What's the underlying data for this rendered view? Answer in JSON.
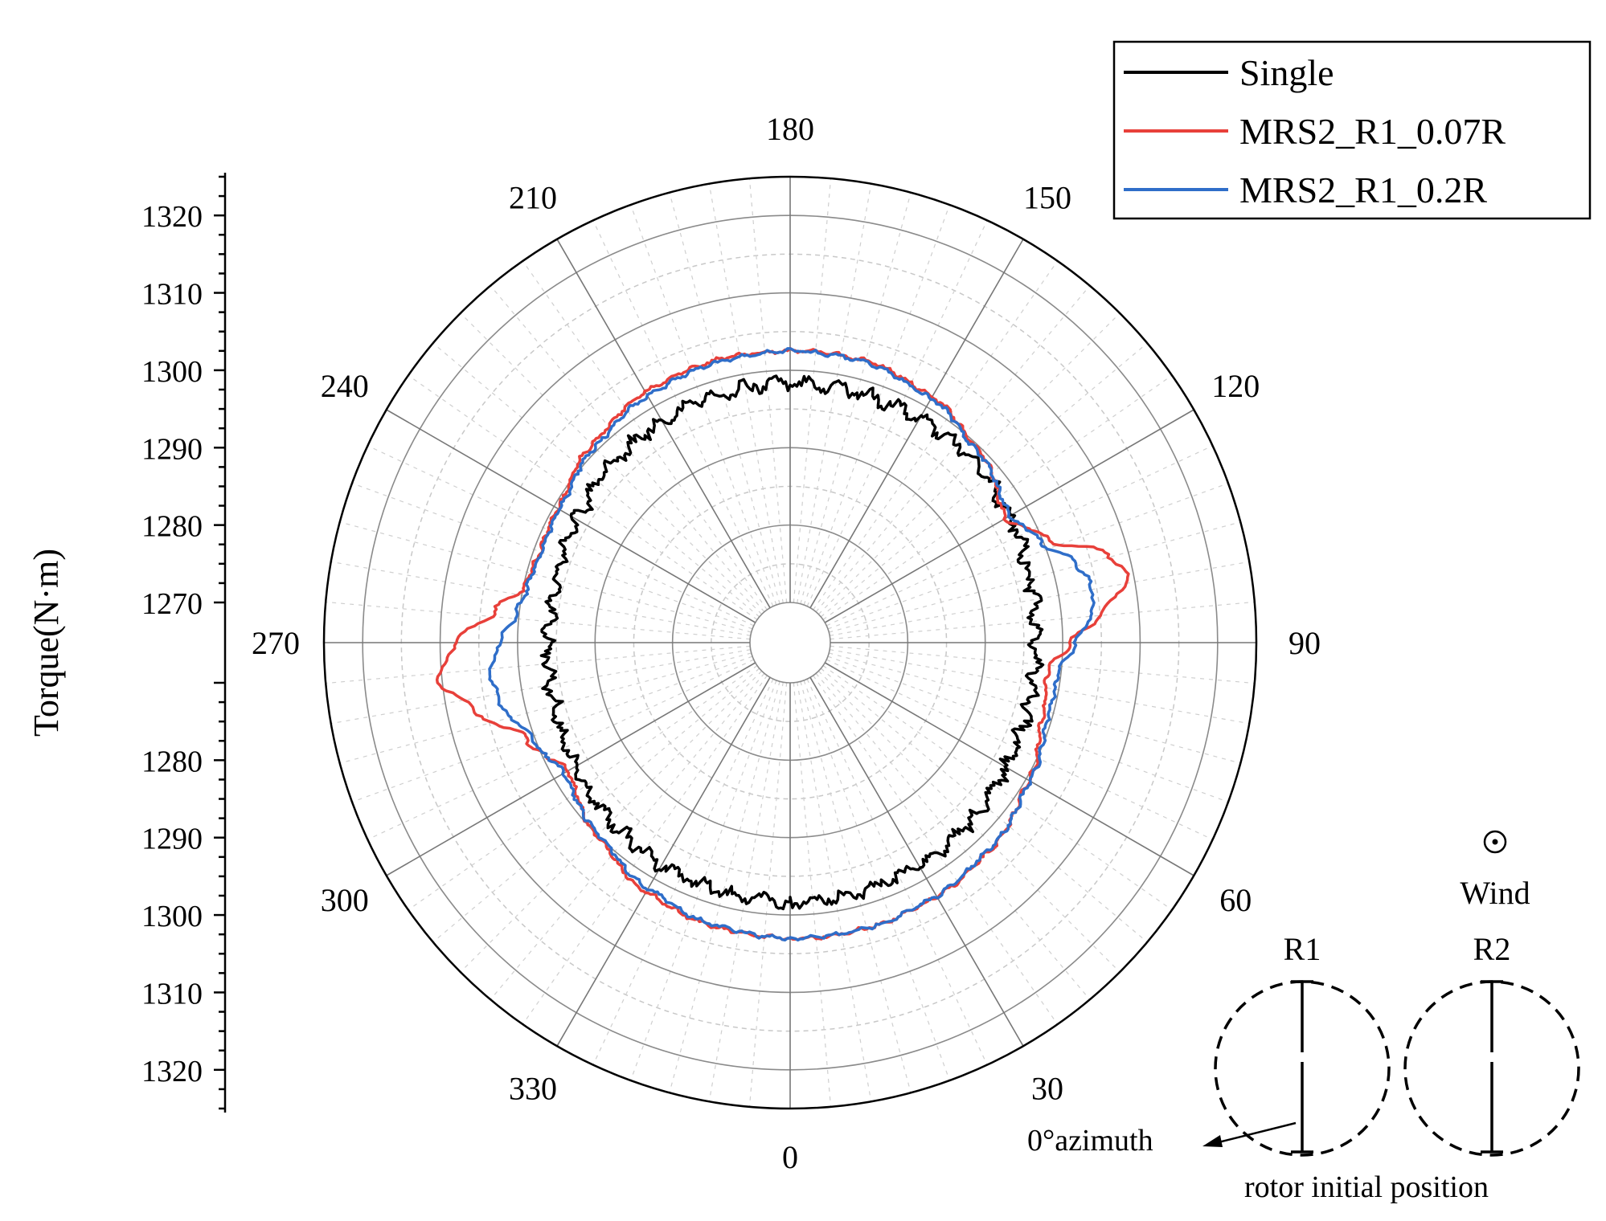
{
  "chart_data": {
    "type": "polar-line",
    "title": "",
    "theta_unit": "degrees",
    "theta_zero": "bottom",
    "theta_direction": "counterclockwise",
    "angle_tick_labels": [
      "0",
      "30",
      "60",
      "90",
      "120",
      "150",
      "180",
      "210",
      "240",
      "270",
      "300",
      "330"
    ],
    "radial_axis": {
      "label": "Torque(N·m)",
      "center_value": 1270,
      "outer_value": 1325,
      "tick_labels": [
        "1320",
        "1310",
        "1300",
        "1290",
        "1280",
        "1270",
        "1280",
        "1290",
        "1300",
        "1310",
        "1320"
      ],
      "tick_values": [
        1270,
        1280,
        1290,
        1300,
        1310,
        1320
      ]
    },
    "legend": {
      "position": "top-right",
      "entries": [
        "Single",
        "MRS2_R1_0.07R",
        "MRS2_R1_0.2R"
      ]
    },
    "series": [
      {
        "name": "Single",
        "color": "#000000",
        "theta": [
          0,
          15,
          30,
          45,
          60,
          75,
          90,
          105,
          120,
          135,
          150,
          165,
          180,
          195,
          210,
          225,
          240,
          255,
          270,
          285,
          300,
          315,
          330,
          345,
          360
        ],
        "r": [
          1298.3,
          1298.2,
          1298.0,
          1297.6,
          1297.0,
          1296.6,
          1296.5,
          1296.9,
          1297.6,
          1298.0,
          1298.2,
          1298.3,
          1298.3,
          1298.2,
          1297.9,
          1297.3,
          1296.6,
          1296.1,
          1296.0,
          1296.3,
          1296.9,
          1297.5,
          1297.9,
          1298.2,
          1298.3
        ]
      },
      {
        "name": "MRS2_R1_0.07R",
        "color": "#e8403a",
        "theta": [
          0,
          15,
          30,
          45,
          60,
          75,
          84,
          90,
          96,
          101,
          105,
          112,
          120,
          135,
          150,
          165,
          180,
          195,
          210,
          225,
          240,
          250,
          258,
          264,
          270,
          276,
          282,
          290,
          300,
          315,
          330,
          345,
          360
        ],
        "r": [
          1303.0,
          1303.0,
          1302.7,
          1302.0,
          1300.4,
          1298.7,
          1298.2,
          1301.0,
          1305.6,
          1309.4,
          1307.6,
          1300.5,
          1297.0,
          1299.5,
          1301.5,
          1302.5,
          1302.5,
          1302.5,
          1302.2,
          1301.0,
          1299.4,
          1299.2,
          1299.8,
          1303.2,
          1308.0,
          1310.5,
          1306.5,
          1301.0,
          1298.0,
          1300.1,
          1302.0,
          1302.8,
          1303.0
        ]
      },
      {
        "name": "MRS2_R1_0.2R",
        "color": "#2f6ec9",
        "theta": [
          0,
          15,
          30,
          45,
          60,
          75,
          84,
          90,
          96,
          101,
          105,
          112,
          120,
          135,
          150,
          165,
          180,
          195,
          210,
          225,
          240,
          250,
          258,
          264,
          270,
          276,
          282,
          290,
          300,
          315,
          330,
          345,
          360
        ],
        "r": [
          1303.0,
          1303.0,
          1302.6,
          1301.8,
          1300.6,
          1299.4,
          1299.6,
          1301.7,
          1304.0,
          1304.4,
          1303.2,
          1299.6,
          1297.6,
          1299.3,
          1301.2,
          1302.3,
          1302.5,
          1302.2,
          1301.6,
          1300.5,
          1299.2,
          1299.0,
          1299.4,
          1300.3,
          1302.4,
          1303.8,
          1303.0,
          1300.4,
          1298.6,
          1299.8,
          1301.5,
          1302.6,
          1303.0
        ]
      }
    ]
  },
  "inset": {
    "wind_symbol": "⊙",
    "wind_label": "Wind",
    "rotor1_label": "R1",
    "rotor2_label": "R2",
    "azimuth_label": "0°azimuth",
    "initial_position_label": "rotor initial position"
  }
}
